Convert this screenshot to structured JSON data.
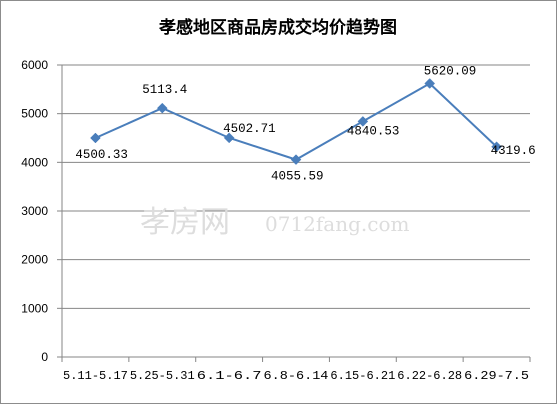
{
  "watermark": {
    "text": "孝房网",
    "url": "0712fang.com"
  },
  "chart_data": {
    "type": "line",
    "title": "孝感地区商品房成交均价趋势图",
    "categories": [
      "5.11-5.17",
      "5.25-5.31",
      "6.1-6.7",
      "6.8-6.14",
      "6.15-6.21",
      "6.22-6.28",
      "6.29-7.5"
    ],
    "series": [
      {
        "values": [
          4500.33,
          5113.4,
          4502.71,
          4055.59,
          4840.53,
          5620.09,
          4319.6
        ]
      }
    ],
    "data_labels": [
      "4500.33",
      "5113.4",
      "4502.71",
      "4055.59",
      "4840.53",
      "5620.09",
      "4319.6"
    ],
    "ylim": [
      0,
      6000
    ],
    "yticks": [
      0,
      1000,
      2000,
      3000,
      4000,
      5000,
      6000
    ],
    "grid": true,
    "legend": false,
    "colors": {
      "line": "#4a7ebb",
      "marker": "#4a7ebb",
      "grid": "#868686",
      "axis": "#868686"
    }
  }
}
